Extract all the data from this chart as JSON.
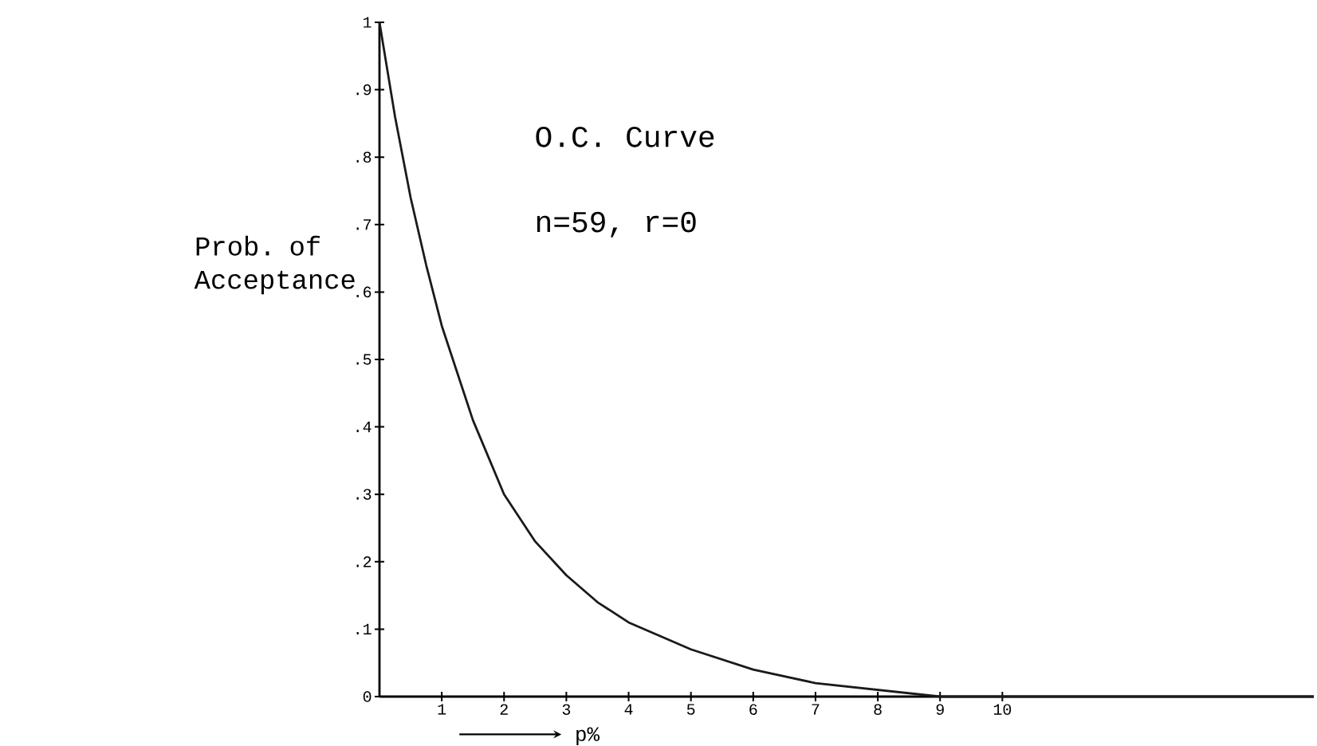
{
  "chart_data": {
    "type": "line",
    "xlabel": "p%",
    "ylabel": "Prob. of Acceptance",
    "annotations": [
      "O.C. Curve",
      "n=59, r=0"
    ],
    "x": [
      0,
      0.25,
      0.5,
      0.75,
      1,
      1.5,
      2,
      2.5,
      3,
      3.5,
      4,
      5,
      6,
      7,
      8,
      9,
      10,
      12,
      15
    ],
    "series": [
      {
        "color": "#1a1a1a",
        "values": [
          1.0,
          0.86,
          0.74,
          0.64,
          0.55,
          0.41,
          0.3,
          0.23,
          0.18,
          0.14,
          0.11,
          0.07,
          0.04,
          0.02,
          0.01,
          0.0,
          0.0,
          0.0,
          0.0
        ]
      }
    ],
    "xlim": [
      0,
      15
    ],
    "ylim": [
      0,
      1
    ],
    "xticks": [
      1,
      2,
      3,
      4,
      5,
      6,
      7,
      8,
      9,
      10
    ],
    "yticks": [
      0,
      {
        "value": 0.1,
        "label": ".1"
      },
      {
        "value": 0.2,
        "label": ".2"
      },
      {
        "value": 0.3,
        "label": ".3"
      },
      {
        "value": 0.4,
        "label": ".4"
      },
      {
        "value": 0.5,
        "label": ".5"
      },
      {
        "value": 0.6,
        "label": ".6"
      },
      {
        "value": 0.7,
        "label": ".7"
      },
      {
        "value": 0.8,
        "label": ".8"
      },
      {
        "value": 0.9,
        "label": ".9"
      },
      1
    ],
    "grid": false,
    "marker": "none",
    "line_style": "solid"
  }
}
